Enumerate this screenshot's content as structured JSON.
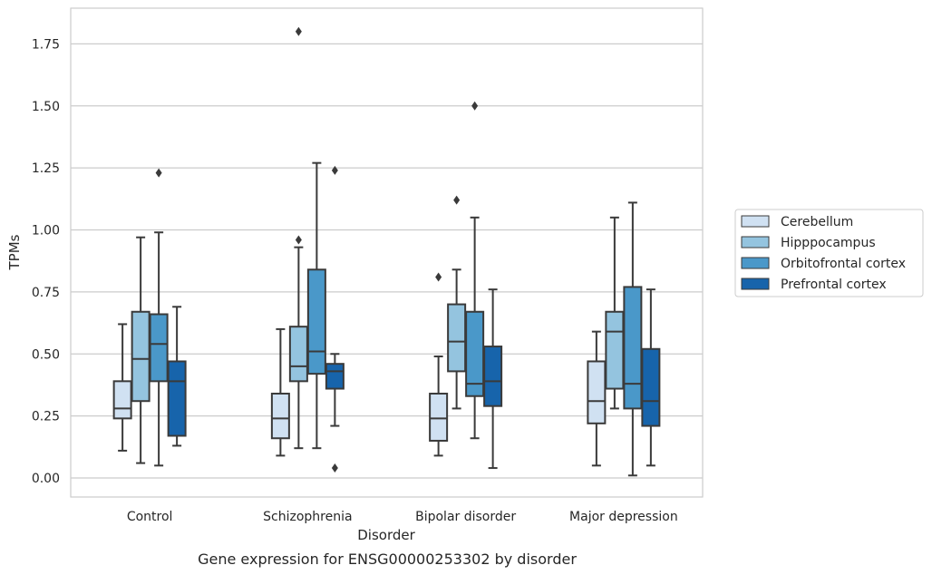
{
  "chart_data": {
    "type": "box",
    "title": "",
    "caption": "Gene expression for ENSG00000253302 by disorder",
    "xlabel": "Disorder",
    "ylabel": "TPMs",
    "ylim": [
      -0.08,
      1.89
    ],
    "yticks": [
      "0.00",
      "0.25",
      "0.50",
      "0.75",
      "1.00",
      "1.25",
      "1.50",
      "1.75"
    ],
    "grid": "horizontal",
    "legend_position": "right",
    "categories": [
      "Control",
      "Schizophrenia",
      "Bipolar disorder",
      "Major depression"
    ],
    "series": [
      {
        "name": "Cerebellum",
        "color": "#d0e1f2",
        "boxes": [
          {
            "whisker_low": 0.11,
            "q1": 0.24,
            "median": 0.28,
            "q3": 0.39,
            "whisker_high": 0.62,
            "outliers": []
          },
          {
            "whisker_low": 0.09,
            "q1": 0.16,
            "median": 0.24,
            "q3": 0.34,
            "whisker_high": 0.6,
            "outliers": []
          },
          {
            "whisker_low": 0.09,
            "q1": 0.15,
            "median": 0.24,
            "q3": 0.34,
            "whisker_high": 0.49,
            "outliers": [
              0.81
            ]
          },
          {
            "whisker_low": 0.05,
            "q1": 0.22,
            "median": 0.31,
            "q3": 0.47,
            "whisker_high": 0.59,
            "outliers": []
          }
        ]
      },
      {
        "name": "Hipppocampus",
        "color": "#94c4df",
        "boxes": [
          {
            "whisker_low": 0.06,
            "q1": 0.31,
            "median": 0.48,
            "q3": 0.67,
            "whisker_high": 0.97,
            "outliers": []
          },
          {
            "whisker_low": 0.12,
            "q1": 0.39,
            "median": 0.45,
            "q3": 0.61,
            "whisker_high": 0.93,
            "outliers": [
              0.96,
              1.8
            ]
          },
          {
            "whisker_low": 0.28,
            "q1": 0.43,
            "median": 0.55,
            "q3": 0.7,
            "whisker_high": 0.84,
            "outliers": [
              1.12
            ]
          },
          {
            "whisker_low": 0.28,
            "q1": 0.36,
            "median": 0.59,
            "q3": 0.67,
            "whisker_high": 1.05,
            "outliers": []
          }
        ]
      },
      {
        "name": "Orbitofrontal cortex",
        "color": "#4a98c9",
        "boxes": [
          {
            "whisker_low": 0.05,
            "q1": 0.39,
            "median": 0.54,
            "q3": 0.66,
            "whisker_high": 0.99,
            "outliers": [
              1.23
            ]
          },
          {
            "whisker_low": 0.12,
            "q1": 0.42,
            "median": 0.51,
            "q3": 0.84,
            "whisker_high": 1.27,
            "outliers": []
          },
          {
            "whisker_low": 0.16,
            "q1": 0.33,
            "median": 0.38,
            "q3": 0.67,
            "whisker_high": 1.05,
            "outliers": [
              1.5
            ]
          },
          {
            "whisker_low": 0.01,
            "q1": 0.28,
            "median": 0.38,
            "q3": 0.77,
            "whisker_high": 1.11,
            "outliers": []
          }
        ]
      },
      {
        "name": "Prefrontal cortex",
        "color": "#1764ab",
        "boxes": [
          {
            "whisker_low": 0.13,
            "q1": 0.17,
            "median": 0.39,
            "q3": 0.47,
            "whisker_high": 0.69,
            "outliers": []
          },
          {
            "whisker_low": 0.21,
            "q1": 0.36,
            "median": 0.43,
            "q3": 0.46,
            "whisker_high": 0.5,
            "outliers": [
              0.04,
              1.24
            ]
          },
          {
            "whisker_low": 0.04,
            "q1": 0.29,
            "median": 0.39,
            "q3": 0.53,
            "whisker_high": 0.76,
            "outliers": []
          },
          {
            "whisker_low": 0.05,
            "q1": 0.21,
            "median": 0.31,
            "q3": 0.52,
            "whisker_high": 0.76,
            "outliers": []
          }
        ]
      }
    ]
  }
}
